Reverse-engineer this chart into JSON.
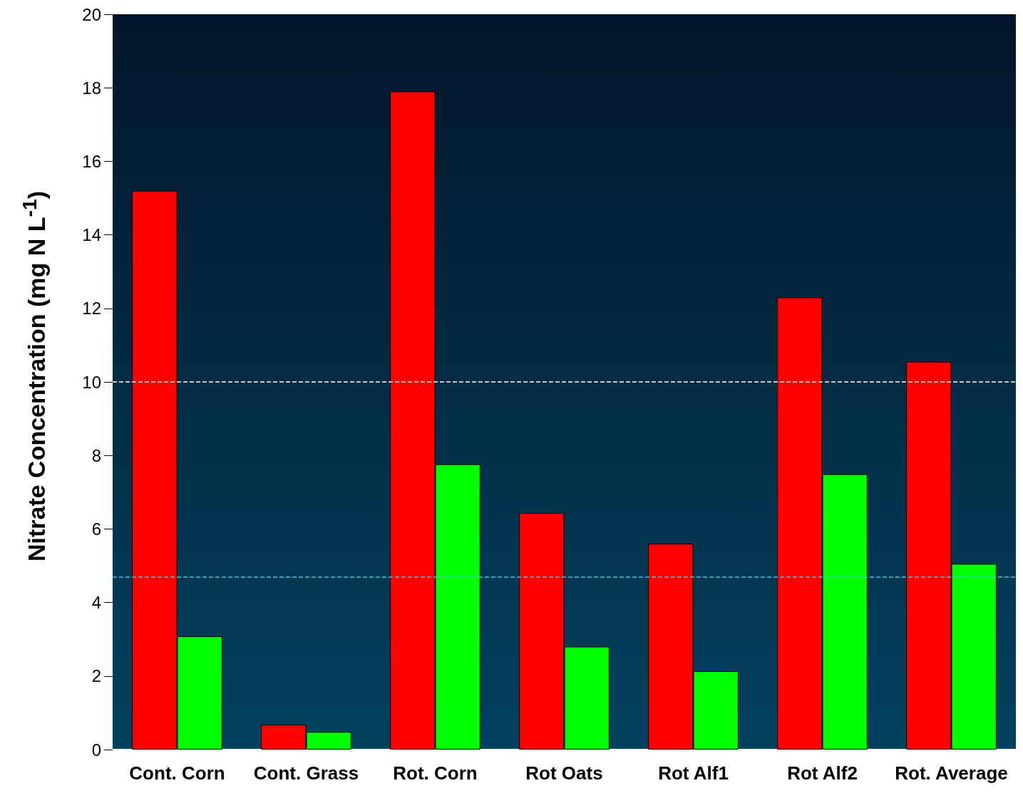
{
  "chart_data": {
    "type": "bar",
    "ylabel": "Nitrate Concentration (mg N L$^{-1}$)",
    "categories": [
      "Cont. Corn",
      "Cont. Grass",
      "Rot. Corn",
      "Rot Oats",
      "Rot Alf1",
      "Rot Alf2",
      "Rot. Average"
    ],
    "series": [
      {
        "color": "#ff0000",
        "values": [
          15.2,
          0.68,
          17.9,
          6.44,
          5.6,
          12.3,
          10.55
        ]
      },
      {
        "color": "#00ff00",
        "values": [
          3.08,
          0.48,
          7.76,
          2.8,
          2.13,
          7.49,
          5.05
        ]
      }
    ],
    "ylim": [
      0,
      20
    ],
    "yticks": [
      0,
      2,
      4,
      6,
      8,
      10,
      12,
      14,
      16,
      18,
      20
    ],
    "ref_lines": [
      {
        "axis": "y",
        "value": 10,
        "color": "#ffffff",
        "line_style": "dashed"
      },
      {
        "axis": "y",
        "value": 4.7,
        "color": "#33ccdd",
        "line_style": "dashed"
      }
    ]
  }
}
